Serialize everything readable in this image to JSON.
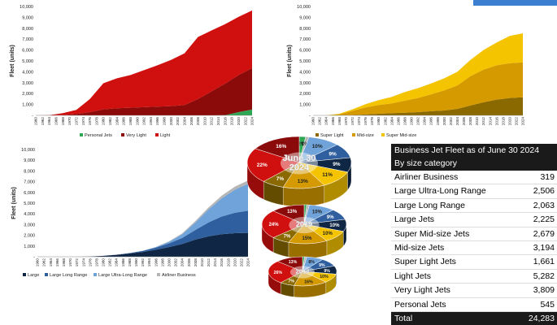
{
  "accent": {
    "corner": "#3c7fd0"
  },
  "chart_data": [
    {
      "id": "light",
      "type": "area",
      "stacked": true,
      "ylabel": "Fleet (units)",
      "ylim": [
        0,
        10000
      ],
      "yticks": [
        "-",
        "1,000",
        "2,000",
        "3,000",
        "4,000",
        "5,000",
        "6,000",
        "7,000",
        "8,000",
        "9,000",
        "10,000"
      ],
      "x": [
        1960,
        1964,
        1968,
        1972,
        1976,
        1980,
        1984,
        1988,
        1992,
        1996,
        2000,
        2004,
        2008,
        2012,
        2016,
        2020,
        2024
      ],
      "xticks": [
        1960,
        1962,
        1964,
        1966,
        1968,
        1970,
        1972,
        1974,
        1976,
        1978,
        1980,
        1982,
        1984,
        1986,
        1988,
        1990,
        1992,
        1994,
        1996,
        1998,
        2000,
        2002,
        2004,
        2006,
        2008,
        2010,
        2012,
        2014,
        2016,
        2018,
        2020,
        2022,
        2024
      ],
      "series": [
        {
          "name": "Personal Jets",
          "color": "#2ea653",
          "values": [
            0,
            0,
            0,
            0,
            0,
            0,
            0,
            0,
            0,
            0,
            0,
            0,
            0,
            0,
            20,
            300,
            545
          ]
        },
        {
          "name": "Very Light",
          "color": "#8b0a0a",
          "values": [
            0,
            0,
            30,
            120,
            300,
            550,
            650,
            700,
            750,
            800,
            850,
            950,
            1500,
            2200,
            2900,
            3400,
            3809
          ]
        },
        {
          "name": "Light",
          "color": "#d0100f",
          "values": [
            0,
            20,
            170,
            380,
            1200,
            2400,
            2750,
            3000,
            3400,
            3800,
            4250,
            4750,
            5700,
            5600,
            5450,
            5350,
            5282
          ]
        }
      ],
      "legend": "bottom"
    },
    {
      "id": "mid",
      "type": "area",
      "stacked": true,
      "ylabel": "Fleet (units)",
      "ylim": [
        0,
        10000
      ],
      "yticks": [
        "-",
        "1,000",
        "2,000",
        "3,000",
        "4,000",
        "5,000",
        "6,000",
        "7,000",
        "8,000",
        "9,000",
        "10,000"
      ],
      "x": [
        1960,
        1964,
        1968,
        1972,
        1976,
        1980,
        1984,
        1988,
        1992,
        1996,
        2000,
        2004,
        2008,
        2012,
        2016,
        2020,
        2024
      ],
      "xticks": [
        1960,
        1962,
        1964,
        1966,
        1968,
        1970,
        1972,
        1974,
        1976,
        1978,
        1980,
        1982,
        1984,
        1986,
        1988,
        1990,
        1992,
        1994,
        1996,
        1998,
        2000,
        2002,
        2004,
        2006,
        2008,
        2010,
        2012,
        2014,
        2016,
        2018,
        2020,
        2022,
        2024
      ],
      "series": [
        {
          "name": "Super Light",
          "color": "#8a6a00",
          "values": [
            0,
            0,
            0,
            20,
            80,
            150,
            200,
            250,
            300,
            380,
            450,
            600,
            900,
            1200,
            1450,
            1600,
            1661
          ]
        },
        {
          "name": "Mid-size",
          "color": "#d49a00",
          "values": [
            0,
            0,
            100,
            400,
            650,
            800,
            900,
            1100,
            1300,
            1550,
            1850,
            2150,
            2700,
            3000,
            3150,
            3200,
            3194
          ]
        },
        {
          "name": "Super Mid-size",
          "color": "#f5c400",
          "values": [
            0,
            0,
            50,
            130,
            300,
            450,
            600,
            800,
            900,
            1000,
            1100,
            1250,
            1500,
            1800,
            2100,
            2500,
            2679
          ]
        }
      ],
      "legend": "bottom"
    },
    {
      "id": "large",
      "type": "area",
      "stacked": true,
      "ylabel": "Fleet (units)",
      "ylim": [
        0,
        10000
      ],
      "yticks": [
        "-",
        "1,000",
        "2,000",
        "3,000",
        "4,000",
        "5,000",
        "6,000",
        "7,000",
        "8,000",
        "9,000",
        "10,000"
      ],
      "x": [
        1960,
        1964,
        1968,
        1972,
        1976,
        1980,
        1984,
        1988,
        1992,
        1996,
        2000,
        2004,
        2008,
        2012,
        2016,
        2020,
        2024
      ],
      "xticks": [
        1960,
        1962,
        1964,
        1966,
        1968,
        1970,
        1972,
        1974,
        1976,
        1978,
        1980,
        1982,
        1984,
        1986,
        1988,
        1990,
        1992,
        1994,
        1996,
        1998,
        2000,
        2002,
        2004,
        2006,
        2008,
        2010,
        2012,
        2014,
        2016,
        2018,
        2020,
        2022,
        2024
      ],
      "series": [
        {
          "name": "Large",
          "color": "#0f2745",
          "values": [
            0,
            0,
            0,
            0,
            20,
            80,
            180,
            300,
            450,
            650,
            900,
            1200,
            1600,
            1900,
            2100,
            2200,
            2225
          ]
        },
        {
          "name": "Large Long Range",
          "color": "#2f5f9e",
          "values": [
            0,
            0,
            0,
            0,
            0,
            0,
            10,
            40,
            100,
            200,
            350,
            550,
            900,
            1300,
            1650,
            1900,
            2063
          ]
        },
        {
          "name": "Large Ultra-Long Range",
          "color": "#6fa3da",
          "values": [
            0,
            0,
            0,
            0,
            0,
            0,
            0,
            0,
            0,
            50,
            150,
            350,
            700,
            1200,
            1700,
            2150,
            2506
          ]
        },
        {
          "name": "Airliner Business",
          "color": "#b5b5b5",
          "values": [
            0,
            0,
            0,
            0,
            0,
            0,
            0,
            5,
            10,
            20,
            40,
            80,
            130,
            190,
            240,
            290,
            319
          ]
        }
      ],
      "legend": "bottom"
    },
    {
      "id": "pies",
      "type": "pie",
      "pies": [
        {
          "label": "June 30\n2024",
          "values": [
            2,
            1,
            10,
            9,
            9,
            11,
            13,
            7,
            22,
            16
          ],
          "labels": [
            "2%",
            "1%",
            "10%",
            "9%",
            "9%",
            "11%",
            "13%",
            "7%",
            "22%",
            "16%"
          ]
        },
        {
          "label": "2019",
          "values": [
            1,
            1,
            10,
            9,
            10,
            10,
            15,
            7,
            24,
            13
          ],
          "labels": [
            "",
            "",
            "10%",
            "9%",
            "10%",
            "10%",
            "15%",
            "7%",
            "24%",
            "13%"
          ]
        },
        {
          "label": "2014",
          "values": [
            1,
            1,
            8,
            9,
            9,
            10,
            16,
            7,
            26,
            13
          ],
          "labels": [
            "",
            "",
            "8%",
            "9%",
            "9%",
            "10%",
            "16%",
            "7%",
            "26%",
            "13%"
          ]
        }
      ],
      "colors": [
        "#2ea653",
        "#b5b5b5",
        "#6fa3da",
        "#2f5f9e",
        "#0f2745",
        "#f5c400",
        "#d49a00",
        "#8a6a00",
        "#d0100f",
        "#8b0a0a"
      ]
    }
  ],
  "table": {
    "title": "Business Jet Fleet as of June 30 2024",
    "subtitle": "By size category",
    "rows": [
      {
        "label": "Airliner Business",
        "value": "319"
      },
      {
        "label": "Large Ultra-Long Range",
        "value": "2,506"
      },
      {
        "label": "Large Long Range",
        "value": "2,063"
      },
      {
        "label": "Large Jets",
        "value": "2,225"
      },
      {
        "label": "Super Mid-size Jets",
        "value": "2,679"
      },
      {
        "label": "Mid-size Jets",
        "value": "3,194"
      },
      {
        "label": "Super Light Jets",
        "value": "1,661"
      },
      {
        "label": "Light Jets",
        "value": "5,282"
      },
      {
        "label": "Very Light Jets",
        "value": "3,809"
      },
      {
        "label": "Personal Jets",
        "value": "545"
      }
    ],
    "total": {
      "label": "Total",
      "value": "24,283"
    }
  }
}
